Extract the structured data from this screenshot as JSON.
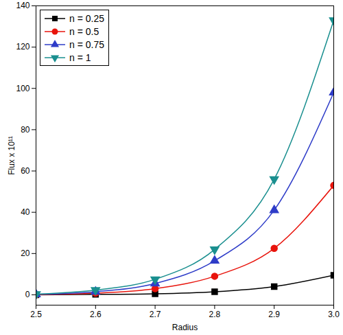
{
  "chart_data": {
    "type": "line",
    "x_label": "Radius",
    "y_label": "Flux x 10¹¹",
    "x": [
      2.5,
      2.6,
      2.7,
      2.8,
      2.9,
      3.0
    ],
    "series": [
      {
        "name": "n = 0.25",
        "color": "#000000",
        "marker": "square",
        "values": [
          0,
          0.2,
          0.5,
          1.5,
          4,
          9.5
        ]
      },
      {
        "name": "n = 0.5",
        "color": "#e8140c",
        "marker": "circle",
        "values": [
          0.1,
          0.8,
          3,
          9,
          22.5,
          53
        ]
      },
      {
        "name": "n = 0.75",
        "color": "#2e3cc8",
        "marker": "triangle",
        "values": [
          0.2,
          1.5,
          5.5,
          16.5,
          41,
          98
        ]
      },
      {
        "name": "n = 1",
        "color": "#1a8f8f",
        "marker": "triangle-down",
        "values": [
          0.3,
          2.3,
          7.5,
          22,
          56,
          133
        ]
      }
    ],
    "xlim": [
      2.5,
      3.0
    ],
    "xticks": [
      2.5,
      2.6,
      2.7,
      2.8,
      2.9,
      {
        "value": 3.0,
        "label": "3.0"
      }
    ],
    "ylim": [
      -5,
      140
    ],
    "yticks": [
      0,
      20,
      40,
      60,
      80,
      100,
      120,
      140
    ],
    "grid": false,
    "legend": "top-left"
  }
}
